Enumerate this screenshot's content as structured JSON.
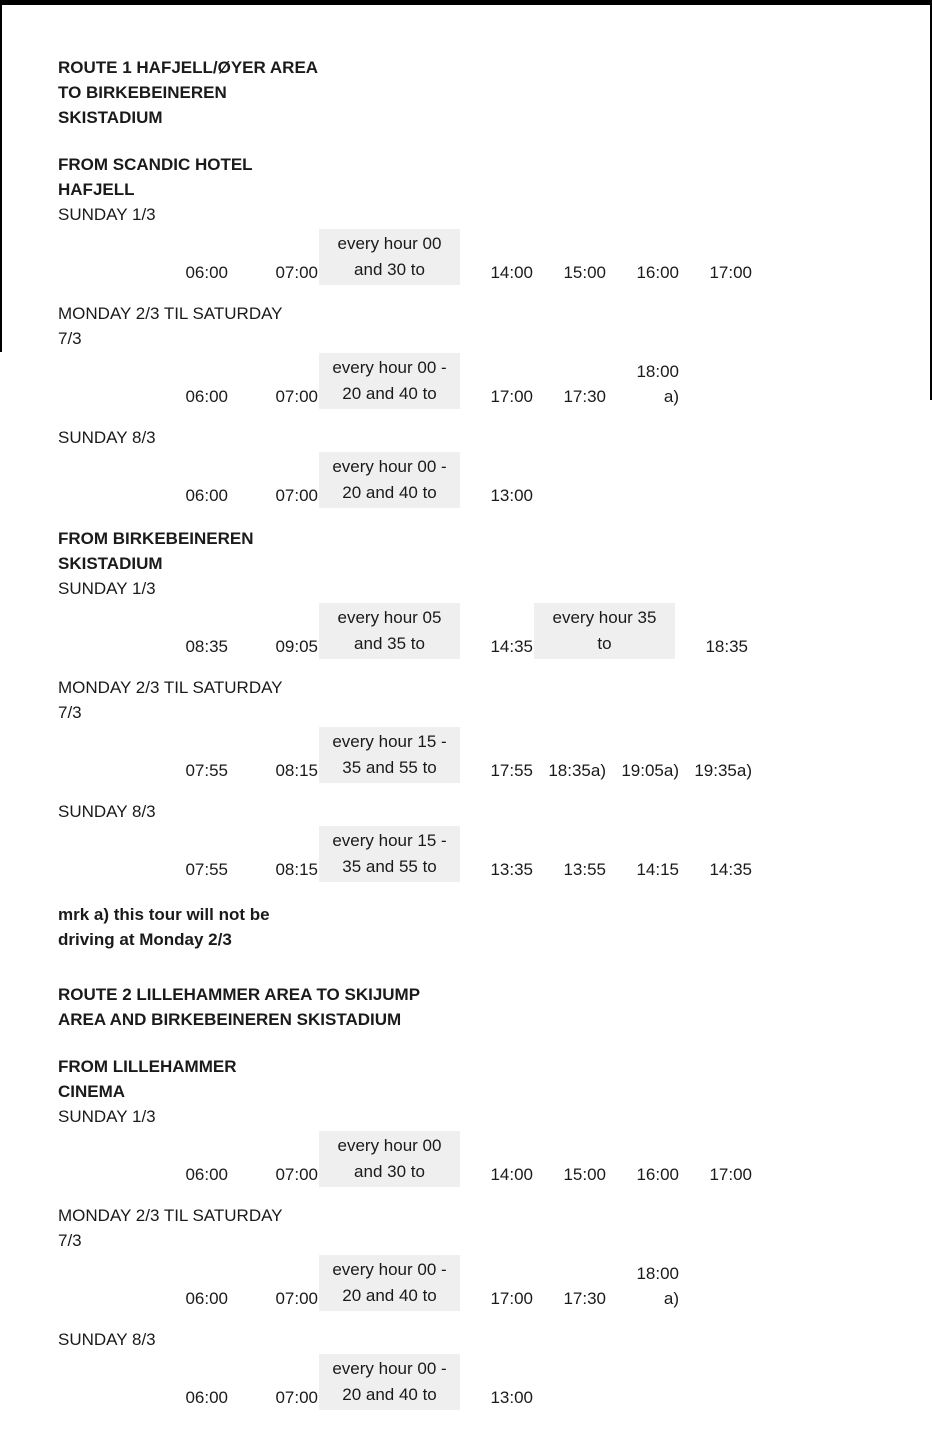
{
  "colors": {
    "highlight_bg": "#efefef",
    "text": "#1a1a1a",
    "border": "#000000"
  },
  "route1": {
    "title": "ROUTE 1 HAFJELL/ØYER AREA\nTO BIRKEBEINEREN\nSKISTADIUM",
    "stop_scandic": {
      "name": "FROM SCANDIC HOTEL\nHAFJELL",
      "schedules": [
        {
          "day": "SUNDAY 1/3",
          "cells": [
            {
              "text": "06:00",
              "type": "time"
            },
            {
              "text": "07:00",
              "type": "time"
            },
            {
              "text": "every hour 00\nand 30 to",
              "type": "frequency-note"
            },
            {
              "text": "14:00",
              "type": "time"
            },
            {
              "text": "15:00",
              "type": "time"
            },
            {
              "text": "16:00",
              "type": "time"
            },
            {
              "text": "17:00",
              "type": "time"
            }
          ]
        },
        {
          "day": "MONDAY 2/3 TIL SATURDAY\n7/3",
          "cells": [
            {
              "text": "06:00",
              "type": "time"
            },
            {
              "text": "07:00",
              "type": "time"
            },
            {
              "text": "every hour 00 -\n20 and 40 to",
              "type": "frequency-note"
            },
            {
              "text": "17:00",
              "type": "time"
            },
            {
              "text": "17:30",
              "type": "time"
            },
            {
              "text": "18:00\na)",
              "type": "time"
            }
          ]
        },
        {
          "day": "SUNDAY 8/3",
          "cells": [
            {
              "text": "06:00",
              "type": "time"
            },
            {
              "text": "07:00",
              "type": "time"
            },
            {
              "text": "every hour 00 -\n20 and 40 to",
              "type": "frequency-note"
            },
            {
              "text": "13:00",
              "type": "time"
            }
          ]
        }
      ]
    },
    "stop_birkebeineren": {
      "name": "FROM BIRKEBEINEREN\nSKISTADIUM",
      "schedules": [
        {
          "day": "SUNDAY 1/3",
          "cells": [
            {
              "text": "08:35",
              "type": "time"
            },
            {
              "text": "09:05",
              "type": "time"
            },
            {
              "text": "every hour 05\nand 35 to",
              "type": "frequency-note"
            },
            {
              "text": "14:35",
              "type": "time"
            },
            {
              "text": "every hour 35\nto",
              "type": "frequency-note"
            },
            {
              "text": "18:35",
              "type": "time"
            }
          ]
        },
        {
          "day": "MONDAY 2/3 TIL SATURDAY\n7/3",
          "cells": [
            {
              "text": "07:55",
              "type": "time"
            },
            {
              "text": "08:15",
              "type": "time"
            },
            {
              "text": "every hour 15 -\n35 and 55 to",
              "type": "frequency-note"
            },
            {
              "text": "17:55",
              "type": "time"
            },
            {
              "text": "18:35a)",
              "type": "time"
            },
            {
              "text": "19:05a)",
              "type": "time"
            },
            {
              "text": "19:35a)",
              "type": "time"
            }
          ]
        },
        {
          "day": "SUNDAY 8/3",
          "cells": [
            {
              "text": "07:55",
              "type": "time"
            },
            {
              "text": "08:15",
              "type": "time"
            },
            {
              "text": "every hour 15 -\n35 and 55 to",
              "type": "frequency-note"
            },
            {
              "text": "13:35",
              "type": "time"
            },
            {
              "text": "13:55",
              "type": "time"
            },
            {
              "text": "14:15",
              "type": "time"
            },
            {
              "text": "14:35",
              "type": "time"
            }
          ]
        }
      ]
    },
    "footnote": "mrk a) this tour will not be\ndriving at Monday 2/3"
  },
  "route2": {
    "title": "ROUTE 2 LILLEHAMMER AREA TO SKIJUMP\nAREA AND BIRKEBEINEREN SKISTADIUM",
    "stop_cinema": {
      "name": "FROM LILLEHAMMER\nCINEMA",
      "schedules": [
        {
          "day": "SUNDAY 1/3",
          "cells": [
            {
              "text": "06:00",
              "type": "time"
            },
            {
              "text": "07:00",
              "type": "time"
            },
            {
              "text": "every hour 00\nand 30 to",
              "type": "frequency-note"
            },
            {
              "text": "14:00",
              "type": "time"
            },
            {
              "text": "15:00",
              "type": "time"
            },
            {
              "text": "16:00",
              "type": "time"
            },
            {
              "text": "17:00",
              "type": "time"
            }
          ]
        },
        {
          "day": "MONDAY 2/3 TIL SATURDAY\n7/3",
          "cells": [
            {
              "text": "06:00",
              "type": "time"
            },
            {
              "text": "07:00",
              "type": "time"
            },
            {
              "text": "every hour 00 -\n20 and 40 to",
              "type": "frequency-note"
            },
            {
              "text": "17:00",
              "type": "time"
            },
            {
              "text": "17:30",
              "type": "time"
            },
            {
              "text": "18:00\na)",
              "type": "time"
            }
          ]
        },
        {
          "day": "SUNDAY 8/3",
          "cells": [
            {
              "text": "06:00",
              "type": "time"
            },
            {
              "text": "07:00",
              "type": "time"
            },
            {
              "text": "every hour 00 -\n20 and 40 to",
              "type": "frequency-note"
            },
            {
              "text": "13:00",
              "type": "time"
            }
          ]
        }
      ]
    }
  }
}
